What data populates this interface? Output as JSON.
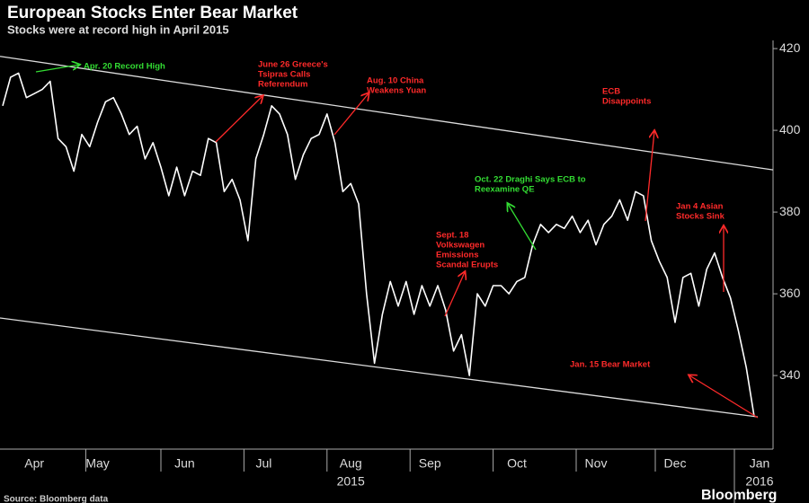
{
  "chart_data": {
    "type": "line",
    "title": "European Stocks Enter Bear Market",
    "subtitle": "Stocks were at record high in April 2015",
    "source": "Source: Bloomberg data",
    "brand": "Bloomberg",
    "categories": [
      null,
      null,
      null,
      null,
      "Apr",
      null,
      null,
      null,
      null,
      null,
      null,
      null,
      "May",
      null,
      null,
      null,
      null,
      null,
      null,
      null,
      null,
      null,
      null,
      "Jun",
      null,
      null,
      null,
      null,
      null,
      null,
      null,
      null,
      null,
      "Jul",
      null,
      null,
      null,
      null,
      null,
      null,
      null,
      null,
      null,
      null,
      "Aug",
      null,
      null,
      null,
      null,
      null,
      null,
      null,
      null,
      null,
      "Sep",
      null,
      null,
      null,
      null,
      null,
      null,
      null,
      null,
      null,
      null,
      "Oct",
      null,
      null,
      null,
      null,
      null,
      null,
      null,
      null,
      null,
      "Nov",
      null,
      null,
      null,
      null,
      null,
      null,
      null,
      null,
      null,
      "Dec",
      null,
      null,
      null,
      null,
      null,
      null,
      null,
      null,
      null,
      "Jan"
    ],
    "years": [
      "2015",
      "2016"
    ],
    "values": [
      406,
      413,
      414,
      408,
      409,
      410,
      412,
      398,
      396,
      390,
      399,
      396,
      402,
      407,
      408,
      404,
      399,
      401,
      393,
      397,
      391,
      384,
      391,
      384,
      390,
      389,
      398,
      397,
      385,
      388,
      383,
      373,
      393,
      399,
      406,
      404,
      399,
      388,
      394,
      398,
      399,
      404,
      397,
      385,
      387,
      382,
      360,
      343,
      355,
      363,
      357,
      363,
      355,
      362,
      357,
      362,
      356,
      346,
      350,
      340,
      360,
      357,
      362,
      362,
      360,
      363,
      364,
      372,
      377,
      375,
      377,
      376,
      379,
      375,
      378,
      372,
      377,
      379,
      383,
      378,
      385,
      384,
      373,
      368,
      364,
      353,
      364,
      365,
      357,
      366,
      370,
      364,
      359,
      351,
      342,
      330
    ],
    "color": "#ffffff",
    "trend_lines": [
      {
        "values": [
          418,
          391
        ]
      },
      {
        "values": [
          354,
          330
        ]
      }
    ],
    "ylim": [
      322,
      422
    ],
    "yticks": [
      340,
      360,
      380,
      400,
      420
    ],
    "grid": false,
    "annotations": [
      {
        "lines": [
          "Apr. 20 Record High"
        ],
        "color": "#33dd33"
      },
      {
        "lines": [
          "June 26 Greece's",
          "Tsipras Calls",
          "Referendum"
        ],
        "color": "#ff2a2a"
      },
      {
        "lines": [
          "Aug. 10 China",
          "Weakens Yuan"
        ],
        "color": "#ff2a2a"
      },
      {
        "lines": [
          "ECB",
          "Disappoints"
        ],
        "color": "#ff2a2a"
      },
      {
        "lines": [
          "Oct. 22 Draghi Says ECB to",
          "Reexamine QE"
        ],
        "color": "#33dd33"
      },
      {
        "lines": [
          "Sept. 18",
          "Volkswagen",
          "Emissions",
          "Scandal Erupts"
        ],
        "color": "#ff2a2a"
      },
      {
        "lines": [
          "Jan 4 Asian",
          "Stocks Sink"
        ],
        "color": "#ff2a2a"
      },
      {
        "lines": [
          "Jan. 15 Bear Market"
        ],
        "color": "#ff2a2a"
      }
    ]
  }
}
